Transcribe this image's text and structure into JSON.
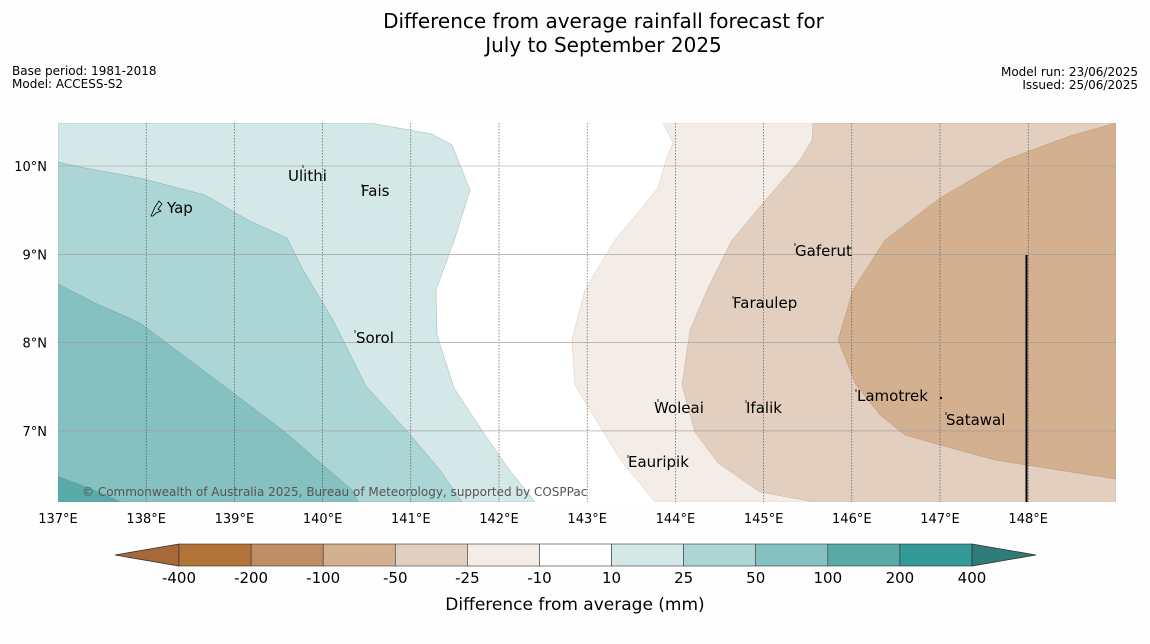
{
  "title_line1": "Difference from average rainfall forecast for",
  "title_line2": "July to September 2025",
  "base_period": "Base period: 1981-2018",
  "model": "Model: ACCESS-S2",
  "model_run": "Model run: 23/06/2025",
  "issued": "Issued: 25/06/2025",
  "copyright": "© Commonwealth of Australia 2025, Bureau of Meteorology, supported by COSPPac",
  "lon_labels": [
    "137°E",
    "138°E",
    "139°E",
    "140°E",
    "141°E",
    "142°E",
    "143°E",
    "144°E",
    "145°E",
    "146°E",
    "147°E",
    "148°E"
  ],
  "lat_labels": [
    "10°N",
    "9°N",
    "8°N",
    "7°N"
  ],
  "places": [
    {
      "name": "Ulithi"
    },
    {
      "name": "Fais"
    },
    {
      "name": "Yap"
    },
    {
      "name": "Gaferut"
    },
    {
      "name": "Faraulep"
    },
    {
      "name": "Sorol"
    },
    {
      "name": "Lamotrek"
    },
    {
      "name": "Woleai"
    },
    {
      "name": "Ifalik"
    },
    {
      "name": "Satawal"
    },
    {
      "name": "Eauripik"
    }
  ],
  "legend": {
    "title": "Difference from average (mm)",
    "ticks": [
      "-400",
      "-200",
      "-100",
      "-50",
      "-25",
      "-10",
      "10",
      "25",
      "50",
      "100",
      "200",
      "400"
    ],
    "colors": [
      "#a66a38",
      "#b27438",
      "#c08d64",
      "#d3b08f",
      "#e2cfbf",
      "#f4ece6",
      "#ffffff",
      "#d4e8e7",
      "#acd5d5",
      "#85c1c0",
      "#5aa9a9",
      "#339a97",
      "#2e7b78"
    ]
  }
}
